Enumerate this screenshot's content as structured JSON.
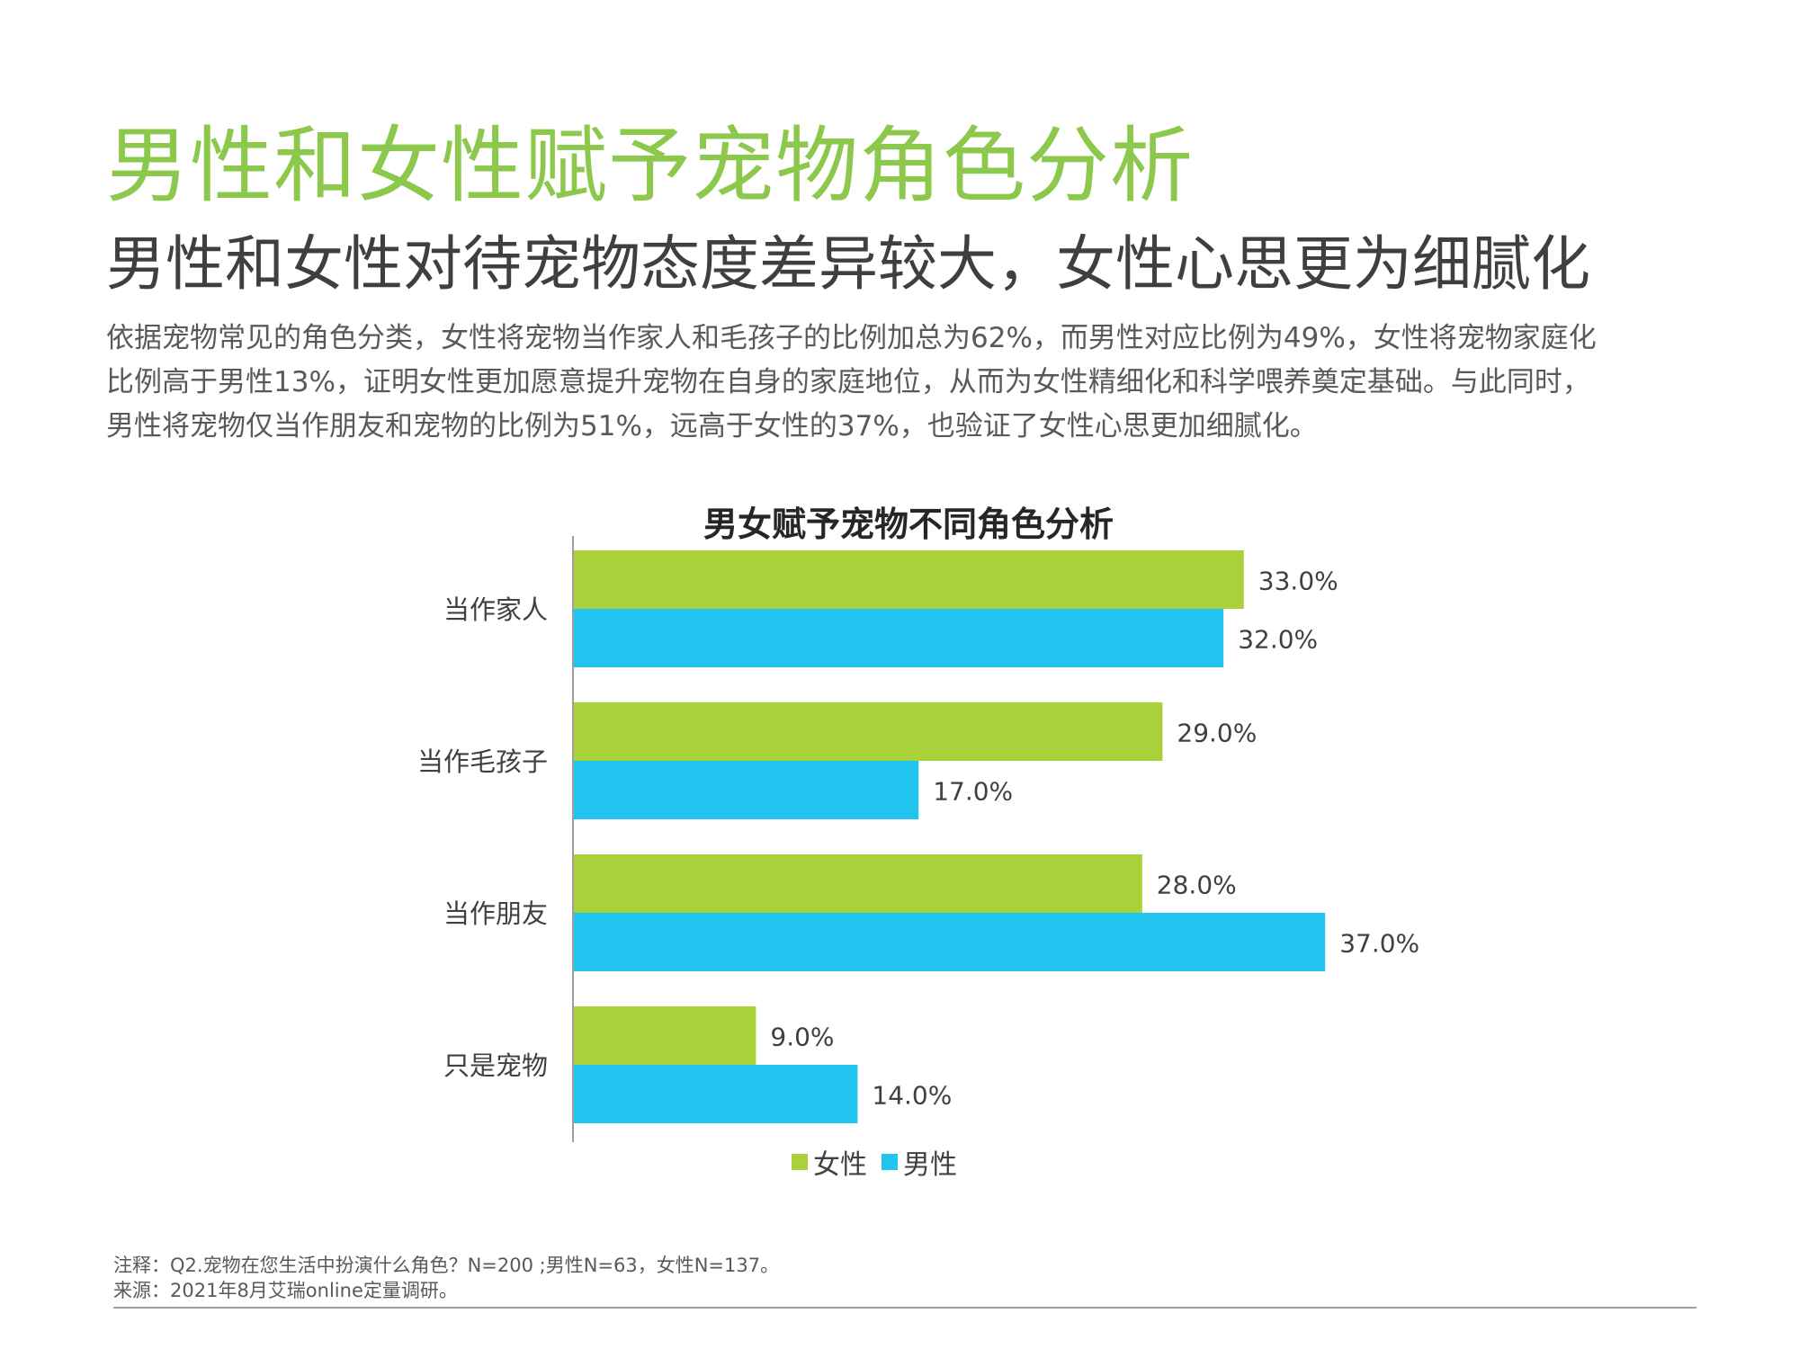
{
  "header": {
    "title": "男性和女性赋予宠物角色分析",
    "subtitle": "男性和女性对待宠物态度差异较大，女性心思更为细腻化"
  },
  "body": {
    "lines": [
      "依据宠物常见的角色分类，女性将宠物当作家人和毛孩子的比例加总为62%，而男性对应比例为49%，女性将宠物家庭化",
      "比例高于男性13%，证明女性更加愿意提升宠物在自身的家庭地位，从而为女性精细化和科学喂养奠定基础。与此同时，",
      "男性将宠物仅当作朋友和宠物的比例为51%，远高于女性的37%，也验证了女性心思更加细腻化。"
    ]
  },
  "chart_data": {
    "type": "bar",
    "orientation": "horizontal",
    "title": "男女赋予宠物不同角色分析",
    "categories": [
      "当作家人",
      "当作毛孩子",
      "当作朋友",
      "只是宠物"
    ],
    "series": [
      {
        "name": "女性",
        "values": [
          33.0,
          29.0,
          28.0,
          9.0
        ],
        "color": "#a8d13a"
      },
      {
        "name": "男性",
        "values": [
          32.0,
          17.0,
          37.0,
          14.0
        ],
        "color": "#21c4ee"
      }
    ],
    "value_format": "percent_1dp",
    "xlim": [
      0,
      40
    ],
    "grid": false,
    "legend_position": "bottom"
  },
  "notes": {
    "note": "注释：Q2.宠物在您生活中扮演什么角色？N=200 ;男性N=63，女性N=137。",
    "source": "来源：2021年8月艾瑞online定量调研。"
  }
}
